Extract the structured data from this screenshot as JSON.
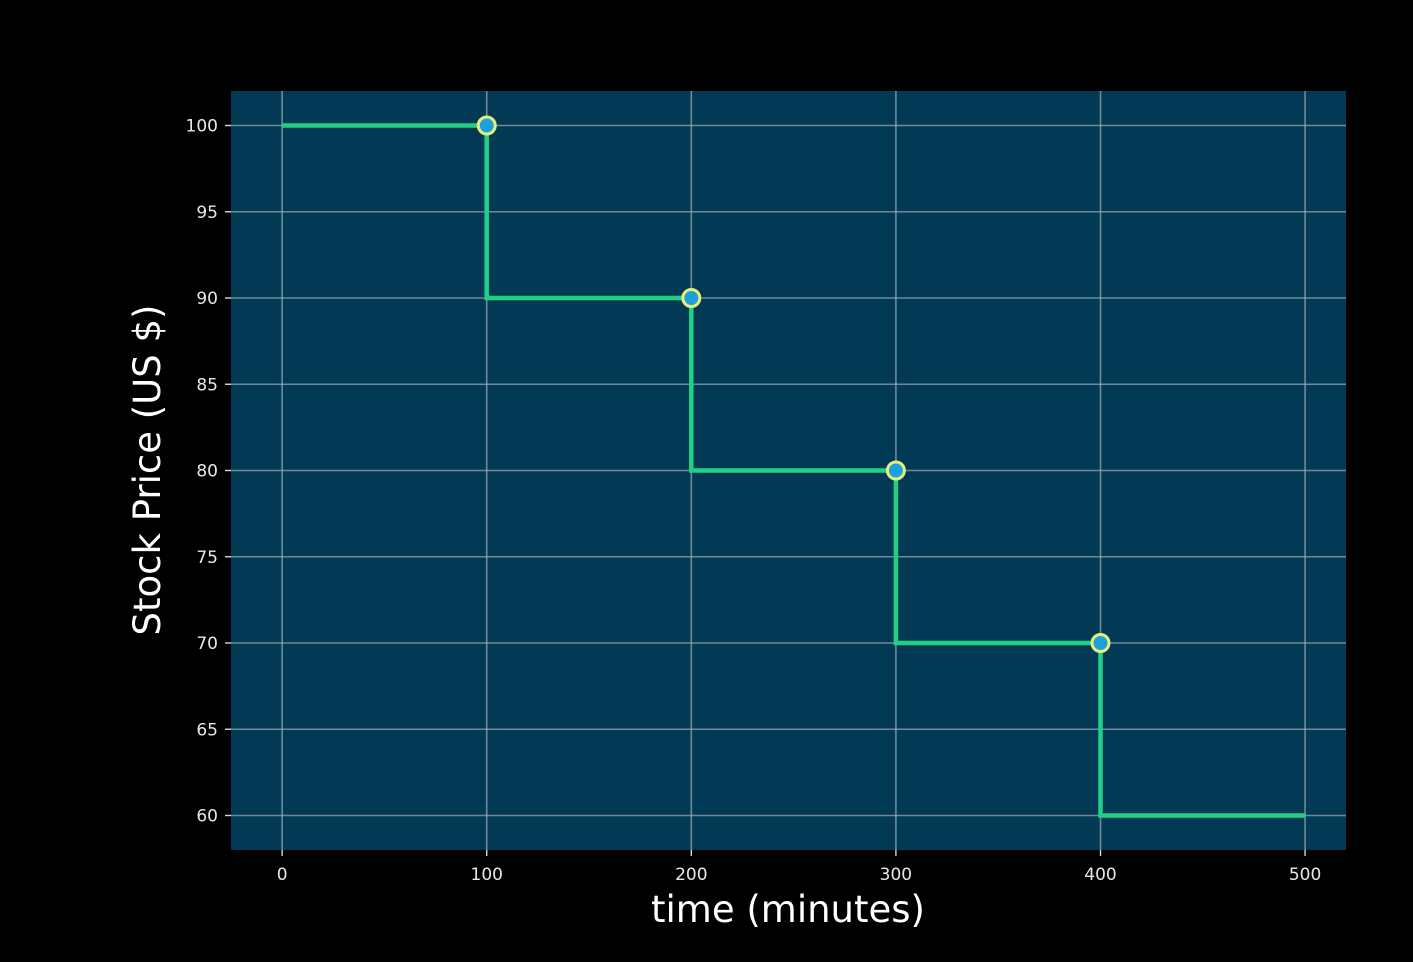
{
  "colors": {
    "page_background": "#000000",
    "plot_background": "#023a55",
    "line": "#1fd185",
    "marker_fill": "#1ea0dc",
    "marker_edge": "#e4f07a"
  },
  "chart_data": {
    "type": "line",
    "style": "step",
    "title": "",
    "xlabel": "time (minutes)",
    "ylabel": "Stock Price (US $)",
    "xlim": [
      -25,
      520
    ],
    "ylim": [
      58,
      102
    ],
    "grid": true,
    "xticks": [
      0,
      100,
      200,
      300,
      400,
      500
    ],
    "xtick_labels": [
      "0",
      "100",
      "200",
      "300",
      "400",
      "500"
    ],
    "yticks": [
      60,
      65,
      70,
      75,
      80,
      85,
      90,
      95,
      100
    ],
    "ytick_labels": [
      "60",
      "65",
      "70",
      "75",
      "80",
      "85",
      "90",
      "95",
      "100"
    ],
    "series": [
      {
        "name": "price",
        "x": [
          0,
          100,
          100,
          200,
          200,
          300,
          300,
          400,
          400,
          500
        ],
        "y": [
          100,
          100,
          90,
          90,
          80,
          80,
          70,
          70,
          60,
          60
        ]
      }
    ],
    "markers": [
      {
        "x": 100,
        "y": 100
      },
      {
        "x": 200,
        "y": 90
      },
      {
        "x": 300,
        "y": 80
      },
      {
        "x": 400,
        "y": 70
      }
    ]
  }
}
